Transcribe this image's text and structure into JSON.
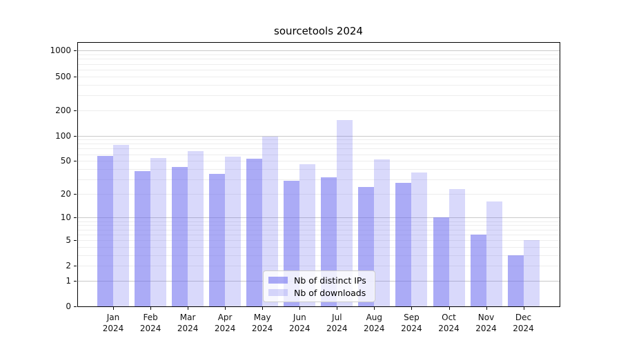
{
  "title": "sourcetools 2024",
  "chart_data": {
    "type": "bar",
    "title": "sourcetools 2024",
    "categories": [
      "Jan",
      "Feb",
      "Mar",
      "Apr",
      "May",
      "Jun",
      "Jul",
      "Aug",
      "Sep",
      "Oct",
      "Nov",
      "Dec"
    ],
    "year_label": "2024",
    "series": [
      {
        "name": "Nb of distinct IPs",
        "color": "rgba(102,102,238,0.55)",
        "values": [
          57,
          38,
          42,
          35,
          53,
          29,
          32,
          24,
          27,
          10,
          6,
          3
        ]
      },
      {
        "name": "Nb of downloads",
        "color": "rgba(102,102,238,0.25)",
        "values": [
          78,
          54,
          65,
          56,
          97,
          46,
          153,
          52,
          36,
          23,
          16,
          5
        ]
      }
    ],
    "yscale": "log10(value+1)",
    "yticks": [
      1000,
      500,
      200,
      100,
      50,
      20,
      10,
      5,
      2,
      1,
      0
    ],
    "ylim": [
      0,
      1260
    ],
    "xlabel": "",
    "ylabel": "",
    "grid": "horizontal log major+minor",
    "legend_position": "inside-bottom-center",
    "colors": {
      "bar_base": "#6666ee",
      "major_grid": "#c9c9c9",
      "minor_grid": "#ededed",
      "spine": "#000000"
    }
  }
}
